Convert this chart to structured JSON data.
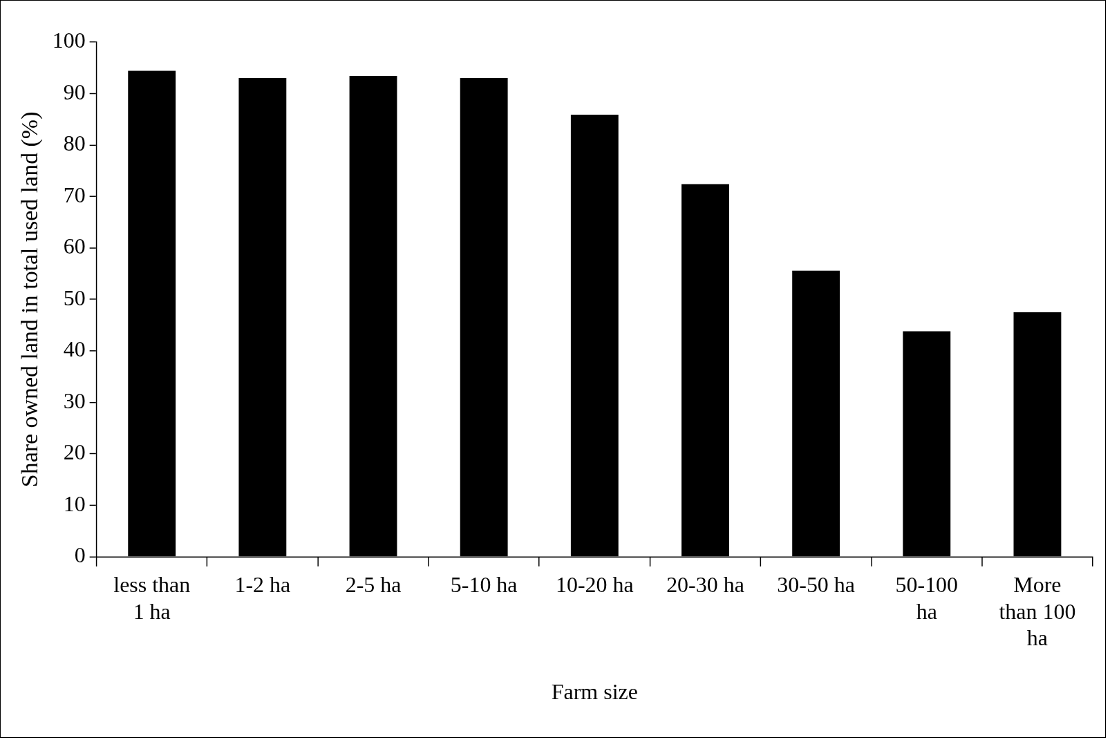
{
  "chart_data": {
    "type": "bar",
    "xlabel": "Farm size",
    "ylabel": "Share owned land in total used land (%)",
    "categories": [
      "less than 1 ha",
      "1-2 ha",
      "2-5 ha",
      "5-10 ha",
      "10-20 ha",
      "20-30 ha",
      "30-50 ha",
      "50-100 ha",
      "More than 100 ha"
    ],
    "values": [
      94.4,
      93.0,
      93.4,
      93.0,
      85.9,
      72.4,
      55.6,
      43.8,
      47.5
    ],
    "color": "#000000",
    "ylim": [
      0,
      100
    ],
    "yticks": [
      0,
      10,
      20,
      30,
      40,
      50,
      60,
      70,
      80,
      90,
      100
    ],
    "grid": false,
    "legend": false
  }
}
